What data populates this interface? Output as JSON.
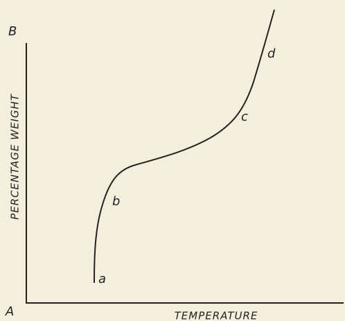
{
  "axes": {
    "y_end_label": "B",
    "origin_label": "A",
    "y_label": "PERCENTAGE WEIGHT",
    "x_label": "TEMPERATURE"
  },
  "curve_labels": [
    "a",
    "b",
    "c",
    "d"
  ]
}
